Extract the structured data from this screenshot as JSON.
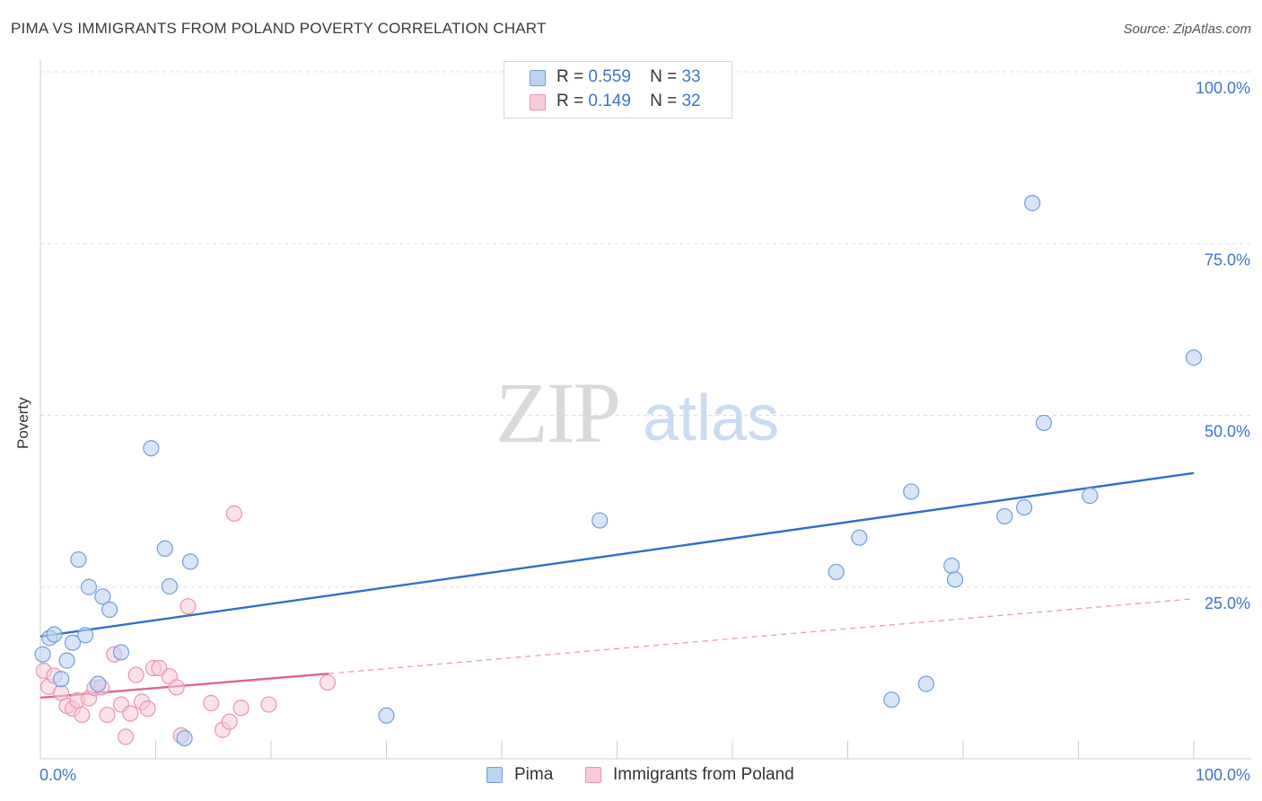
{
  "header": {
    "title": "PIMA VS IMMIGRANTS FROM POLAND POVERTY CORRELATION CHART",
    "source": "Source: ZipAtlas.com"
  },
  "watermark": {
    "zip": "ZIP",
    "atlas": "atlas"
  },
  "legend_top": {
    "pima": {
      "r_label": "R =",
      "r_value": "0.559",
      "n_label": "N =",
      "n_value": "33"
    },
    "poland": {
      "r_label": "R =",
      "r_value": "0.149",
      "n_label": "N =",
      "n_value": "32"
    }
  },
  "legend_bottom": {
    "pima": "Pima",
    "poland": "Immigrants from Poland"
  },
  "colors": {
    "pima_fill": "#bcd4f2",
    "pima_stroke": "#6f9fdc",
    "pima_line": "#2f6fd0",
    "poland_fill": "#f8cad8",
    "poland_stroke": "#e994b0",
    "poland_line": "#e0648c",
    "tick_label": "#3a76c8",
    "grid": "#dddddd"
  },
  "chart_data": {
    "type": "scatter",
    "title": "PIMA VS IMMIGRANTS FROM POLAND POVERTY CORRELATION CHART",
    "xlabel": "",
    "ylabel": "Poverty",
    "xlim": [
      0,
      100
    ],
    "ylim": [
      0,
      100
    ],
    "x_tick_labels": [
      "0.0%",
      "100.0%"
    ],
    "y_ticks": [
      25,
      50,
      75,
      100
    ],
    "y_tick_labels": [
      "25.0%",
      "50.0%",
      "75.0%",
      "100.0%"
    ],
    "grid": true,
    "series": [
      {
        "name": "Pima",
        "points": [
          [
            0.2,
            15.2
          ],
          [
            0.8,
            17.6
          ],
          [
            1.2,
            18.1
          ],
          [
            1.8,
            11.6
          ],
          [
            2.3,
            14.3
          ],
          [
            2.8,
            16.9
          ],
          [
            3.3,
            29.0
          ],
          [
            3.9,
            18.0
          ],
          [
            4.2,
            25.0
          ],
          [
            5.0,
            10.9
          ],
          [
            5.4,
            23.6
          ],
          [
            6.0,
            21.7
          ],
          [
            7.0,
            15.5
          ],
          [
            9.6,
            45.2
          ],
          [
            10.8,
            30.6
          ],
          [
            11.2,
            25.1
          ],
          [
            12.5,
            3.0
          ],
          [
            13.0,
            28.7
          ],
          [
            30.0,
            6.3
          ],
          [
            48.5,
            34.7
          ],
          [
            69.0,
            27.2
          ],
          [
            71.0,
            32.2
          ],
          [
            73.8,
            8.6
          ],
          [
            75.5,
            38.9
          ],
          [
            76.8,
            10.9
          ],
          [
            79.0,
            28.1
          ],
          [
            79.3,
            26.1
          ],
          [
            83.6,
            35.3
          ],
          [
            85.3,
            36.6
          ],
          [
            86.0,
            80.9
          ],
          [
            87.0,
            48.9
          ],
          [
            91.0,
            38.3
          ],
          [
            100.0,
            58.4
          ]
        ],
        "trend": {
          "x": [
            0,
            100
          ],
          "y": [
            17.8,
            41.6
          ],
          "style": "solid"
        }
      },
      {
        "name": "Immigrants from Poland",
        "points": [
          [
            0.3,
            12.8
          ],
          [
            0.7,
            10.5
          ],
          [
            1.2,
            12.1
          ],
          [
            1.8,
            9.6
          ],
          [
            2.3,
            7.7
          ],
          [
            2.8,
            7.3
          ],
          [
            3.2,
            8.5
          ],
          [
            3.6,
            6.4
          ],
          [
            4.2,
            8.8
          ],
          [
            4.7,
            10.3
          ],
          [
            5.3,
            10.4
          ],
          [
            5.8,
            6.4
          ],
          [
            6.4,
            15.2
          ],
          [
            7.0,
            7.9
          ],
          [
            7.4,
            3.2
          ],
          [
            7.8,
            6.6
          ],
          [
            8.3,
            12.2
          ],
          [
            8.8,
            8.3
          ],
          [
            9.3,
            7.3
          ],
          [
            9.8,
            13.2
          ],
          [
            10.3,
            13.2
          ],
          [
            11.2,
            12.0
          ],
          [
            11.8,
            10.4
          ],
          [
            12.2,
            3.4
          ],
          [
            12.8,
            22.2
          ],
          [
            14.8,
            8.1
          ],
          [
            15.8,
            4.2
          ],
          [
            16.4,
            5.4
          ],
          [
            16.8,
            35.7
          ],
          [
            17.4,
            7.4
          ],
          [
            19.8,
            7.9
          ],
          [
            24.9,
            11.1
          ]
        ],
        "trend": {
          "x": [
            0,
            25
          ],
          "y": [
            8.9,
            12.4
          ],
          "style": "solid",
          "extended": {
            "x": [
              25,
              100
            ],
            "y": [
              12.4,
              23.3
            ],
            "style": "dashed"
          }
        }
      }
    ]
  }
}
